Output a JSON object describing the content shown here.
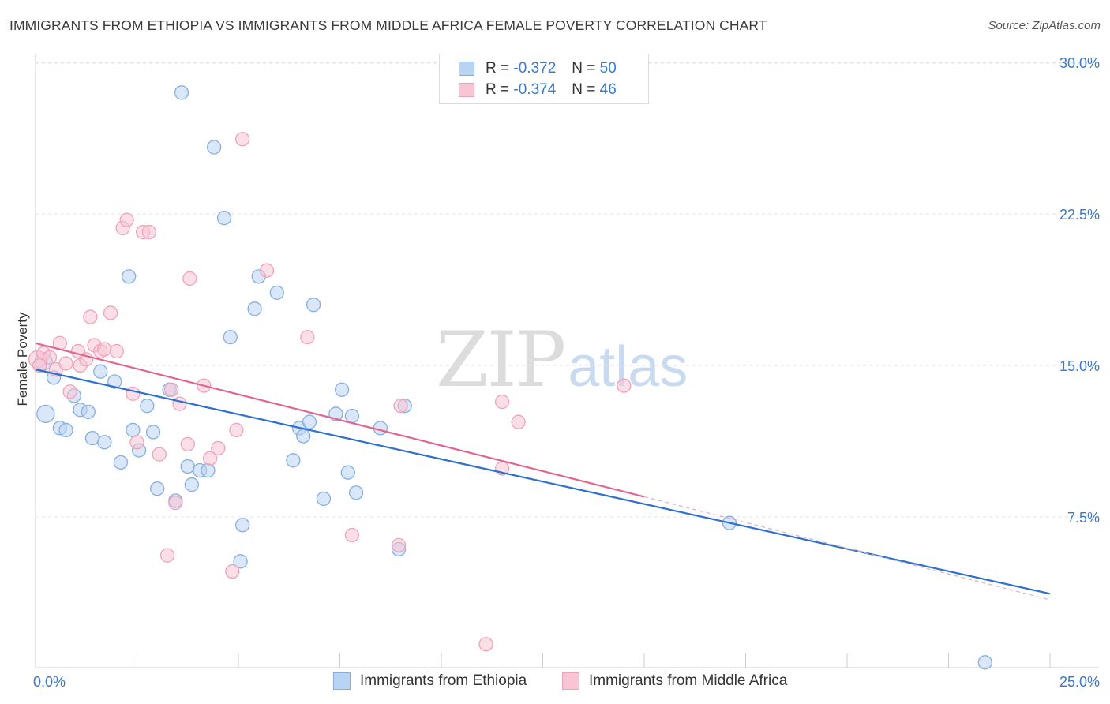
{
  "header": {
    "title": "IMMIGRANTS FROM ETHIOPIA VS IMMIGRANTS FROM MIDDLE AFRICA FEMALE POVERTY CORRELATION CHART",
    "source": "Source: ZipAtlas.com"
  },
  "watermark": {
    "zip": "ZIP",
    "atlas": "atlas"
  },
  "legend": {
    "rows": [
      {
        "r_label": "R =",
        "r_value": "-0.372",
        "n_label": "N =",
        "n_value": "50"
      },
      {
        "r_label": "R =",
        "r_value": "-0.374",
        "n_label": "N =",
        "n_value": "46"
      }
    ]
  },
  "bottom_legend": {
    "series1": "Immigrants from Ethiopia",
    "series2": "Immigrants from Middle Africa"
  },
  "colors": {
    "blue_fill": "#b9d3f3",
    "blue_stroke": "#86afe0",
    "blue_line": "#2f6fd0",
    "pink_fill": "#f7c5d4",
    "pink_stroke": "#eea3ba",
    "pink_line": "#e2658f",
    "tick_text": "#3a78c9",
    "grid": "#e3e3e3"
  },
  "chart_data": {
    "type": "scatter",
    "title": "IMMIGRANTS FROM ETHIOPIA VS IMMIGRANTS FROM MIDDLE AFRICA FEMALE POVERTY CORRELATION CHART",
    "xlabel": "",
    "ylabel": "Female Poverty",
    "xlim": [
      0,
      25
    ],
    "ylim": [
      0,
      31
    ],
    "x_tick_labels": [
      "0.0%",
      "25.0%"
    ],
    "y_ticks": [
      7.5,
      15.0,
      22.5,
      30.0
    ],
    "y_tick_labels": [
      "7.5%",
      "15.0%",
      "22.5%",
      "30.0%"
    ],
    "grid": true,
    "series": [
      {
        "name": "Immigrants from Ethiopia",
        "color": "blue",
        "points": [
          [
            0.2,
            15.2
          ],
          [
            0.45,
            14.4
          ],
          [
            0.95,
            13.5
          ],
          [
            0.25,
            12.6
          ],
          [
            1.1,
            12.8
          ],
          [
            1.3,
            12.7
          ],
          [
            0.6,
            11.9
          ],
          [
            0.75,
            11.8
          ],
          [
            1.4,
            11.4
          ],
          [
            1.7,
            11.2
          ],
          [
            1.6,
            14.7
          ],
          [
            1.95,
            14.2
          ],
          [
            2.1,
            10.2
          ],
          [
            2.3,
            19.4
          ],
          [
            2.4,
            11.8
          ],
          [
            2.55,
            10.8
          ],
          [
            2.75,
            13.0
          ],
          [
            2.9,
            11.7
          ],
          [
            3.0,
            8.9
          ],
          [
            3.3,
            13.8
          ],
          [
            3.45,
            8.3
          ],
          [
            3.75,
            10.0
          ],
          [
            3.85,
            9.1
          ],
          [
            4.05,
            9.8
          ],
          [
            4.25,
            9.8
          ],
          [
            3.6,
            28.5
          ],
          [
            4.4,
            25.8
          ],
          [
            4.65,
            22.3
          ],
          [
            4.8,
            16.4
          ],
          [
            5.05,
            5.3
          ],
          [
            5.1,
            7.1
          ],
          [
            5.4,
            17.8
          ],
          [
            5.5,
            19.4
          ],
          [
            5.95,
            18.6
          ],
          [
            6.35,
            10.3
          ],
          [
            6.5,
            11.9
          ],
          [
            6.6,
            11.5
          ],
          [
            6.75,
            12.2
          ],
          [
            6.85,
            18.0
          ],
          [
            7.1,
            8.4
          ],
          [
            7.4,
            12.6
          ],
          [
            7.55,
            13.8
          ],
          [
            7.7,
            9.7
          ],
          [
            7.8,
            12.5
          ],
          [
            7.9,
            8.7
          ],
          [
            8.5,
            11.9
          ],
          [
            8.95,
            5.9
          ],
          [
            9.1,
            13.0
          ],
          [
            17.1,
            7.2
          ],
          [
            23.4,
            0.3
          ]
        ]
      },
      {
        "name": "Immigrants from Middle Africa",
        "color": "pink",
        "points": [
          [
            0.05,
            15.3
          ],
          [
            0.2,
            15.6
          ],
          [
            0.35,
            15.4
          ],
          [
            0.5,
            14.8
          ],
          [
            0.6,
            16.1
          ],
          [
            0.75,
            15.1
          ],
          [
            0.85,
            13.7
          ],
          [
            1.05,
            15.7
          ],
          [
            1.1,
            15.0
          ],
          [
            1.25,
            15.3
          ],
          [
            1.35,
            17.4
          ],
          [
            1.45,
            16.0
          ],
          [
            1.6,
            15.7
          ],
          [
            1.7,
            15.8
          ],
          [
            1.85,
            17.6
          ],
          [
            2.0,
            15.7
          ],
          [
            2.15,
            21.8
          ],
          [
            2.25,
            22.2
          ],
          [
            2.4,
            13.6
          ],
          [
            2.5,
            11.2
          ],
          [
            2.65,
            21.6
          ],
          [
            2.8,
            21.6
          ],
          [
            3.05,
            10.6
          ],
          [
            3.25,
            5.6
          ],
          [
            3.35,
            13.8
          ],
          [
            3.45,
            8.2
          ],
          [
            3.55,
            13.1
          ],
          [
            3.75,
            11.1
          ],
          [
            3.8,
            19.3
          ],
          [
            4.15,
            14.0
          ],
          [
            4.3,
            10.4
          ],
          [
            4.5,
            10.9
          ],
          [
            4.85,
            4.8
          ],
          [
            4.95,
            11.8
          ],
          [
            5.1,
            26.2
          ],
          [
            5.7,
            19.7
          ],
          [
            6.7,
            16.4
          ],
          [
            7.8,
            6.6
          ],
          [
            8.95,
            6.1
          ],
          [
            9.0,
            13.0
          ],
          [
            11.1,
            1.2
          ],
          [
            11.5,
            9.9
          ],
          [
            11.5,
            13.2
          ],
          [
            11.9,
            12.2
          ],
          [
            14.5,
            14.0
          ],
          [
            0.1,
            15.0
          ]
        ]
      }
    ],
    "trend_lines": [
      {
        "series": "Immigrants from Ethiopia",
        "x_start": 0.0,
        "y_start": 14.8,
        "x_end": 25.0,
        "y_end": 3.7
      },
      {
        "series": "Immigrants from Middle Africa",
        "x_start": 0.0,
        "y_start": 16.1,
        "x_end": 15.0,
        "y_end": 8.5,
        "dashed_extension_to_x": 25.0,
        "dashed_extension_to_y": 3.4
      }
    ]
  }
}
